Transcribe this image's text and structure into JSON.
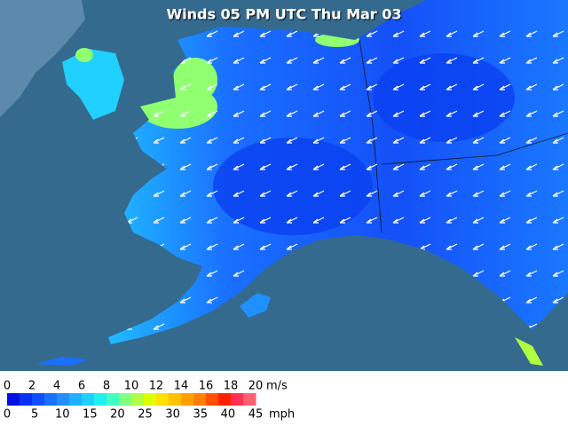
{
  "title": "Winds 05 PM UTC Thu Mar 03",
  "legend": {
    "ms_labels": [
      "0",
      "2",
      "4",
      "6",
      "8",
      "10",
      "12",
      "14",
      "16",
      "18",
      "20"
    ],
    "ms_unit": "m/s",
    "mph_labels": [
      "0",
      "5",
      "10",
      "15",
      "20",
      "25",
      "30",
      "35",
      "40",
      "45"
    ],
    "mph_unit": "mph",
    "colors": [
      "#0010e0",
      "#0830f0",
      "#1050ff",
      "#1a70ff",
      "#2090ff",
      "#20b0ff",
      "#20d0ff",
      "#20f0f0",
      "#40ffc0",
      "#80ff80",
      "#b0ff40",
      "#e0ff00",
      "#ffe000",
      "#ffc000",
      "#ffa000",
      "#ff8000",
      "#ff5000",
      "#ff2000",
      "#ff3050",
      "#ff6070"
    ]
  }
}
